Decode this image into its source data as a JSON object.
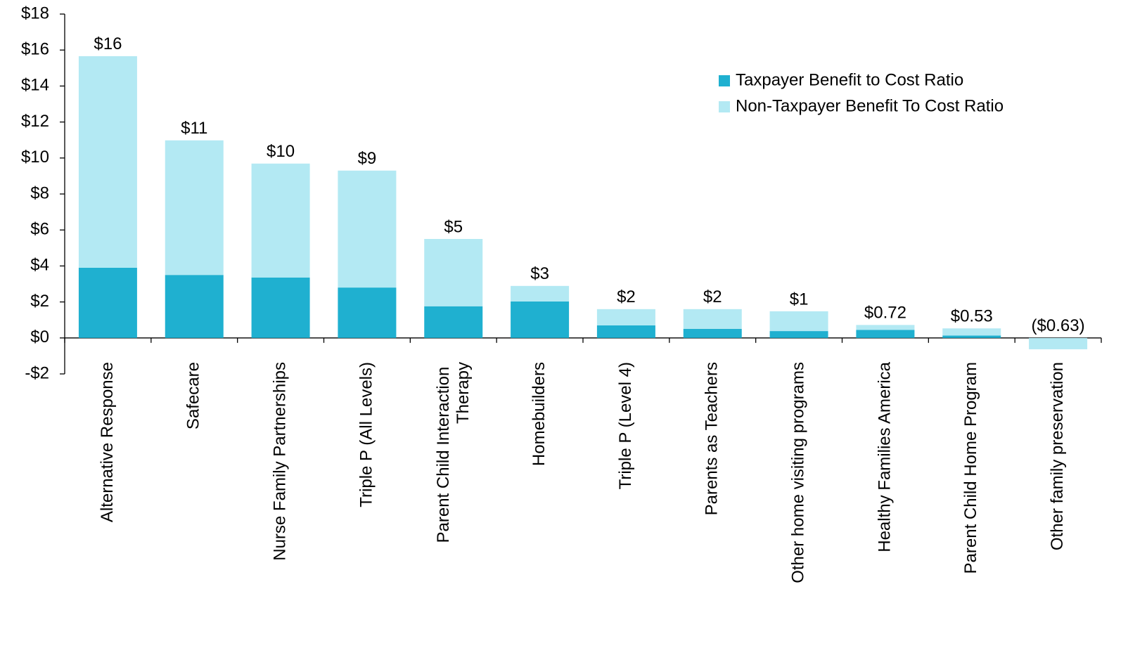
{
  "chart_data": {
    "type": "stacked_bar",
    "categories": [
      "Alternative Response",
      "Safecare",
      "Nurse Family Partnerships",
      "Triple P (All Levels)",
      "Parent Child Interaction Therapy",
      "Homebuilders",
      "Triple P (Level 4)",
      "Parents as Teachers",
      "Other home visiting programs",
      "Healthy Families America",
      "Parent Child Home Program",
      "Other family preservation"
    ],
    "series": [
      {
        "name": "Taxpayer Benefit to Cost Ratio",
        "color": "#1fb0d0",
        "values": [
          3.9,
          3.5,
          3.36,
          2.8,
          1.76,
          2.03,
          0.7,
          0.5,
          0.38,
          0.45,
          0.13,
          0
        ]
      },
      {
        "name": "Non-Taxpayer Benefit To Cost Ratio",
        "color": "#b3e9f3",
        "values": [
          11.76,
          7.48,
          6.33,
          6.5,
          3.74,
          0.86,
          0.9,
          1.1,
          1.1,
          0.27,
          0.4,
          -0.63
        ]
      }
    ],
    "totals": [
      15.66,
      10.98,
      9.69,
      9.3,
      5.5,
      2.89,
      1.6,
      1.6,
      1.48,
      0.72,
      0.53,
      -0.63
    ],
    "total_labels": [
      "$16",
      "$11",
      "$10",
      "$9",
      "$5",
      "$3",
      "$2",
      "$2",
      "$1",
      "$0.72",
      "$0.53",
      "($0.63)"
    ],
    "ylim": [
      -2,
      18
    ],
    "yticks": [
      {
        "value": -2,
        "label": "-$2"
      },
      {
        "value": 0,
        "label": "$0"
      },
      {
        "value": 2,
        "label": "$2"
      },
      {
        "value": 4,
        "label": "$4"
      },
      {
        "value": 6,
        "label": "$6"
      },
      {
        "value": 8,
        "label": "$8"
      },
      {
        "value": 10,
        "label": "$10"
      },
      {
        "value": 12,
        "label": "$12"
      },
      {
        "value": 14,
        "label": "$14"
      },
      {
        "value": 16,
        "label": "$16"
      },
      {
        "value": 18,
        "label": "$18"
      }
    ],
    "legend": "upper right",
    "grid": false
  }
}
